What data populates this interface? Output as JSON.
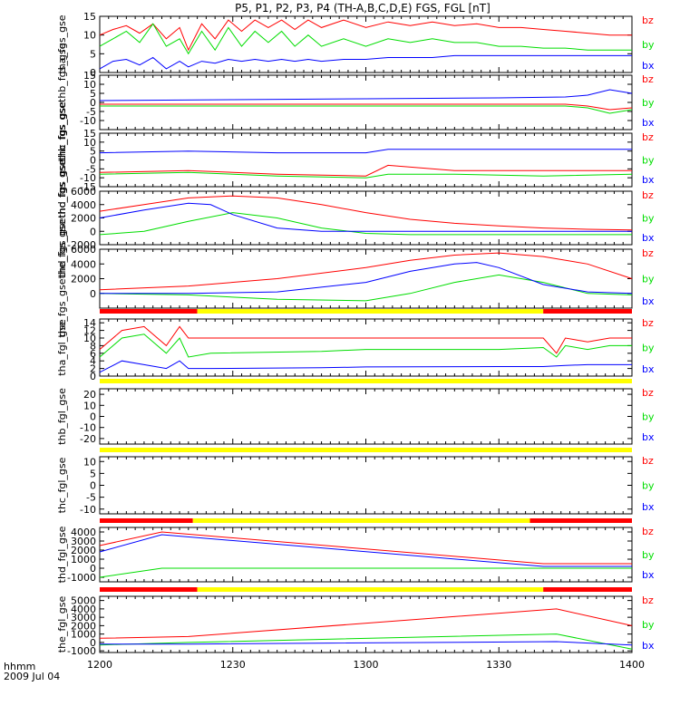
{
  "chart_data": {
    "type": "line",
    "title": "P5, P1, P2, P3, P4 (TH-A,B,C,D,E) FGS, FGL [nT]",
    "time_label": "hhmm",
    "date_label": "2009 Jul 04",
    "x_ticks": [
      "1200",
      "1230",
      "1300",
      "1330",
      "1400"
    ],
    "xlim": [
      1200,
      1400
    ],
    "colors": {
      "bx": "#0000ff",
      "by": "#00dd00",
      "bz": "#ff0000",
      "bar_yellow": "#ffff00",
      "bar_red": "#ff0000"
    },
    "panels": [
      {
        "ylabel": "tha_fgs_gse",
        "ylim": [
          0,
          15
        ],
        "ticks": [
          0,
          5,
          10,
          15
        ],
        "legend": [
          "bz",
          "by",
          "bx"
        ],
        "series": [
          {
            "name": "bz",
            "x": [
              1200,
              1203,
              1206,
              1209,
              1212,
              1215,
              1218,
              1220,
              1223,
              1226,
              1229,
              1232,
              1235,
              1238,
              1241,
              1244,
              1247,
              1250,
              1255,
              1300,
              1305,
              1310,
              1315,
              1320,
              1325,
              1330,
              1335,
              1340,
              1345,
              1350,
              1355,
              1400
            ],
            "y": [
              10,
              11.5,
              12.5,
              10.5,
              13,
              9,
              12,
              6,
              13,
              9,
              14,
              11,
              14,
              12,
              14,
              11.5,
              14,
              12,
              14,
              12,
              13.5,
              12.5,
              13.5,
              12.5,
              13,
              12,
              12,
              11.5,
              11,
              10.5,
              10,
              10
            ]
          },
          {
            "name": "by",
            "x": [
              1200,
              1203,
              1206,
              1209,
              1212,
              1215,
              1218,
              1220,
              1223,
              1226,
              1229,
              1232,
              1235,
              1238,
              1241,
              1244,
              1247,
              1250,
              1255,
              1300,
              1305,
              1310,
              1315,
              1320,
              1325,
              1330,
              1335,
              1340,
              1345,
              1350,
              1355,
              1400
            ],
            "y": [
              7,
              9,
              11,
              8,
              13,
              7,
              9,
              5,
              11,
              6,
              12,
              7,
              11,
              8,
              11,
              7,
              10,
              7,
              9,
              7,
              9,
              8,
              9,
              8,
              8,
              7,
              7,
              6.5,
              6.5,
              6,
              6,
              6
            ]
          },
          {
            "name": "bx",
            "x": [
              1200,
              1203,
              1206,
              1209,
              1212,
              1215,
              1218,
              1220,
              1223,
              1226,
              1229,
              1232,
              1235,
              1238,
              1241,
              1244,
              1247,
              1250,
              1255,
              1300,
              1305,
              1310,
              1315,
              1320,
              1325,
              1330,
              1335,
              1340,
              1345,
              1350,
              1355,
              1400
            ],
            "y": [
              1,
              3,
              3.5,
              2,
              4,
              1,
              3,
              1.5,
              3,
              2.5,
              3.5,
              3,
              3.5,
              3,
              3.5,
              3,
              3.5,
              3,
              3.5,
              3.5,
              4,
              4,
              4,
              4.5,
              4.5,
              4.5,
              4.5,
              4.5,
              4.5,
              4.5,
              4.5,
              4.5
            ]
          }
        ]
      },
      {
        "ylabel": "thb_fgs_gsethb_fgs_gse",
        "ylim": [
          -15,
          15
        ],
        "ticks": [
          -10,
          -5,
          0,
          5,
          10,
          15
        ],
        "legend": [
          "bz",
          "by",
          "bx"
        ],
        "series": [
          {
            "name": "bz",
            "x": [
              1200,
              1230,
              1300,
              1330,
              1345,
              1350,
              1355,
              1400
            ],
            "y": [
              -1,
              -1,
              -1,
              -1,
              -1,
              -2,
              -4,
              -3
            ]
          },
          {
            "name": "by",
            "x": [
              1200,
              1230,
              1300,
              1330,
              1345,
              1350,
              1355,
              1400
            ],
            "y": [
              -2,
              -2,
              -2,
              -2,
              -2,
              -3,
              -6,
              -4
            ]
          },
          {
            "name": "bx",
            "x": [
              1200,
              1230,
              1300,
              1330,
              1345,
              1350,
              1355,
              1400
            ],
            "y": [
              1,
              1.5,
              2,
              2.5,
              3,
              4,
              7,
              5
            ]
          }
        ]
      },
      {
        "ylabel": "thc_fgs_gsethc_fgs_gse",
        "ylim": [
          -15,
          15
        ],
        "ticks": [
          -15,
          -10,
          -5,
          0,
          5,
          10,
          15
        ],
        "legend": [
          "bz",
          "by",
          "bx"
        ],
        "series": [
          {
            "name": "bz",
            "x": [
              1200,
              1220,
              1240,
              1300,
              1305,
              1320,
              1340,
              1400
            ],
            "y": [
              -7,
              -6,
              -8,
              -9,
              -3,
              -6,
              -6,
              -6
            ]
          },
          {
            "name": "by",
            "x": [
              1200,
              1220,
              1240,
              1300,
              1305,
              1320,
              1340,
              1400
            ],
            "y": [
              -8,
              -7,
              -9,
              -10,
              -8,
              -8,
              -9,
              -8
            ]
          },
          {
            "name": "bx",
            "x": [
              1200,
              1220,
              1240,
              1300,
              1305,
              1320,
              1340,
              1400
            ],
            "y": [
              4,
              5,
              4,
              4,
              6,
              6,
              6,
              6
            ]
          }
        ]
      },
      {
        "ylabel": "thd_fgs_gsethd_fgs_gse",
        "ylim": [
          -2000,
          6000
        ],
        "ticks": [
          -2000,
          0,
          2000,
          4000,
          6000
        ],
        "legend": [
          "bz",
          "by",
          "bx"
        ],
        "series": [
          {
            "name": "bz",
            "x": [
              1200,
              1210,
              1220,
              1230,
              1240,
              1250,
              1300,
              1310,
              1320,
              1330,
              1340,
              1350,
              1400
            ],
            "y": [
              3000,
              4000,
              5000,
              5300,
              5000,
              4000,
              2800,
              1800,
              1200,
              800,
              500,
              300,
              200
            ]
          },
          {
            "name": "by",
            "x": [
              1200,
              1210,
              1220,
              1230,
              1240,
              1250,
              1300,
              1310,
              1320,
              1330,
              1340,
              1350,
              1400
            ],
            "y": [
              -500,
              0,
              1500,
              2800,
              2000,
              500,
              -300,
              -500,
              -500,
              -500,
              -500,
              -500,
              -500
            ]
          },
          {
            "name": "bx",
            "x": [
              1200,
              1210,
              1220,
              1225,
              1230,
              1240,
              1250,
              1300,
              1310,
              1320,
              1330,
              1340,
              1350,
              1400
            ],
            "y": [
              2000,
              3200,
              4200,
              4000,
              2500,
              500,
              0,
              0,
              0,
              0,
              0,
              0,
              0,
              0
            ]
          }
        ]
      },
      {
        "ylabel": "the_fgs_gsethe_fgs_gse",
        "ylim": [
          -2000,
          6000
        ],
        "ticks": [
          0,
          2000,
          4000,
          6000
        ],
        "legend": [
          "bz",
          "by",
          "bx"
        ],
        "series": [
          {
            "name": "bz",
            "x": [
              1200,
              1220,
              1240,
              1300,
              1310,
              1320,
              1330,
              1340,
              1350,
              1400
            ],
            "y": [
              500,
              1000,
              2000,
              3500,
              4500,
              5200,
              5500,
              5000,
              4000,
              2000
            ]
          },
          {
            "name": "by",
            "x": [
              1200,
              1220,
              1240,
              1300,
              1310,
              1320,
              1330,
              1340,
              1350,
              1400
            ],
            "y": [
              0,
              -200,
              -800,
              -1000,
              0,
              1500,
              2500,
              1500,
              0,
              -200
            ]
          },
          {
            "name": "bx",
            "x": [
              1200,
              1220,
              1240,
              1300,
              1310,
              1320,
              1325,
              1330,
              1340,
              1350,
              1400
            ],
            "y": [
              0,
              0,
              200,
              1500,
              3000,
              4000,
              4200,
              3500,
              1200,
              200,
              0
            ]
          }
        ],
        "bar": [
          {
            "from": 1200,
            "to": 1222,
            "c": "bar_red"
          },
          {
            "from": 1222,
            "to": 1340,
            "c": "bar_yellow"
          },
          {
            "from": 1340,
            "to": 1400,
            "c": "bar_red"
          }
        ]
      },
      {
        "ylabel": "tha_fgl_gse",
        "ylim": [
          0,
          15
        ],
        "ticks": [
          0,
          2,
          4,
          6,
          8,
          10,
          12,
          14
        ],
        "legend": [
          "bz",
          "by",
          "bx"
        ],
        "series": [
          {
            "name": "bz",
            "x": [
              1200,
              1205,
              1210,
              1215,
              1218,
              1220,
              1225,
              1250,
              1300,
              1330,
              1340,
              1343,
              1345,
              1350,
              1355,
              1400
            ],
            "y": [
              7,
              12,
              13,
              8,
              13,
              10,
              10,
              10,
              10,
              10,
              10,
              6,
              10,
              9,
              10,
              10
            ]
          },
          {
            "name": "by",
            "x": [
              1200,
              1205,
              1210,
              1215,
              1218,
              1220,
              1225,
              1250,
              1300,
              1330,
              1340,
              1343,
              1345,
              1350,
              1355,
              1400
            ],
            "y": [
              5,
              10,
              11,
              6,
              10,
              5,
              6,
              6.5,
              7,
              7,
              7.5,
              5,
              8,
              7,
              8,
              8
            ]
          },
          {
            "name": "bx",
            "x": [
              1200,
              1205,
              1210,
              1215,
              1218,
              1220,
              1225,
              1250,
              1300,
              1330,
              1340,
              1345,
              1350,
              1400
            ],
            "y": [
              1,
              4,
              3,
              2,
              4,
              2,
              2,
              2.2,
              2.4,
              2.5,
              2.5,
              2.8,
              3,
              3
            ]
          }
        ],
        "bar": [
          {
            "from": 1200,
            "to": 1400,
            "c": "bar_yellow"
          }
        ]
      },
      {
        "ylabel": "thb_fgl_gse",
        "ylim": [
          -25,
          25
        ],
        "ticks": [
          -20,
          -10,
          0,
          10,
          20
        ],
        "legend": [
          "bz",
          "by",
          "bx"
        ],
        "series": [],
        "bar": [
          {
            "from": 1200,
            "to": 1400,
            "c": "bar_yellow"
          }
        ]
      },
      {
        "ylabel": "thc_fgl_gse",
        "ylim": [
          -12,
          12
        ],
        "ticks": [
          -10,
          -5,
          0,
          5,
          10
        ],
        "legend": [
          "bz",
          "by",
          "bx"
        ],
        "series": [],
        "bar": [
          {
            "from": 1200,
            "to": 1221,
            "c": "bar_red"
          },
          {
            "from": 1221,
            "to": 1337,
            "c": "bar_yellow"
          },
          {
            "from": 1337,
            "to": 1400,
            "c": "bar_red"
          }
        ]
      },
      {
        "ylabel": "thd_fgl_gse",
        "ylim": [
          -1500,
          4500
        ],
        "ticks": [
          -1000,
          0,
          1000,
          2000,
          3000,
          4000
        ],
        "legend": [
          "bz",
          "by",
          "bx"
        ],
        "series": [
          {
            "name": "bz",
            "x": [
              1200,
              1214,
              1340,
              1400
            ],
            "y": [
              2500,
              4000,
              500,
              500
            ]
          },
          {
            "name": "by",
            "x": [
              1200,
              1214,
              1340,
              1400
            ],
            "y": [
              -1000,
              0,
              0,
              0
            ]
          },
          {
            "name": "bx",
            "x": [
              1200,
              1214,
              1340,
              1400
            ],
            "y": [
              1800,
              3700,
              200,
              200
            ]
          }
        ],
        "bar": [
          {
            "from": 1200,
            "to": 1222,
            "c": "bar_red"
          },
          {
            "from": 1222,
            "to": 1340,
            "c": "bar_yellow"
          },
          {
            "from": 1340,
            "to": 1400,
            "c": "bar_red"
          }
        ]
      },
      {
        "ylabel": "the_fgl_gse",
        "ylim": [
          -1200,
          5500
        ],
        "ticks": [
          -1000,
          0,
          1000,
          2000,
          3000,
          4000,
          5000
        ],
        "legend": [
          "bz",
          "by",
          "bx"
        ],
        "series": [
          {
            "name": "bz",
            "x": [
              1200,
              1220,
              1343,
              1400
            ],
            "y": [
              500,
              700,
              4000,
              2000
            ]
          },
          {
            "name": "by",
            "x": [
              1200,
              1220,
              1343,
              1400
            ],
            "y": [
              -300,
              0,
              1000,
              -800
            ]
          },
          {
            "name": "bx",
            "x": [
              1200,
              1220,
              1343,
              1400
            ],
            "y": [
              -200,
              -200,
              100,
              -300
            ]
          }
        ]
      }
    ]
  }
}
